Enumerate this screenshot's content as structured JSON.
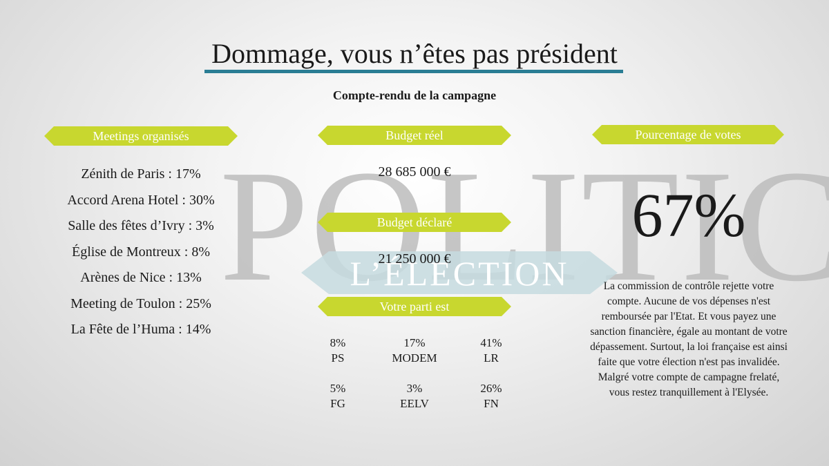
{
  "title": "Dommage, vous n’êtes pas président",
  "subtitle": "Compte-rendu de la campagne",
  "watermark": {
    "main": "POLITIC",
    "sub": "L’ÉLECTION"
  },
  "meetings": {
    "header": "Meetings organisés",
    "items": [
      "Zénith de Paris : 17%",
      "Accord Arena Hotel : 30%",
      "Salle des fêtes d’Ivry : 3%",
      "Église de Montreux : 8%",
      "Arènes de Nice : 13%",
      "Meeting de Toulon : 25%",
      "La Fête de l’Huma : 14%"
    ]
  },
  "budget_reel": {
    "header": "Budget réel",
    "value": "28 685 000 €"
  },
  "budget_declare": {
    "header": "Budget déclaré",
    "value": "21 250 000 €"
  },
  "parti": {
    "header": "Votre parti est",
    "items": [
      {
        "pct": "8%",
        "name": "PS"
      },
      {
        "pct": "17%",
        "name": "MODEM"
      },
      {
        "pct": "41%",
        "name": "LR"
      },
      {
        "pct": "5%",
        "name": "FG"
      },
      {
        "pct": "3%",
        "name": "EELV"
      },
      {
        "pct": "26%",
        "name": "FN"
      }
    ]
  },
  "votes": {
    "header": "Pourcentage de votes",
    "value": "67%",
    "text": "La commission de contrôle rejette votre compte. Aucune de vos dépenses n'est remboursée par l'Etat. Et vous payez une sanction financière, égale au montant de votre dépassement. Surtout, la loi française est ainsi faite que votre élection n'est pas invalidée. Malgré votre compte de campagne frelaté, vous restez tranquillement à l'Elysée."
  },
  "colors": {
    "accent": "#c8d72f",
    "title_line": "#2a7d94",
    "band": "#c5dadf"
  }
}
